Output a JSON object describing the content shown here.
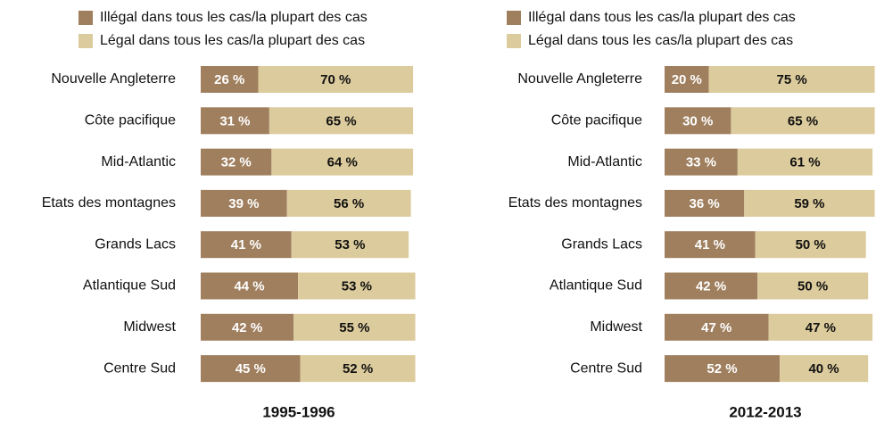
{
  "chart_data": [
    {
      "type": "bar",
      "stacked": true,
      "orientation": "horizontal",
      "title": "1995-1996",
      "categories": [
        "Nouvelle Angleterre",
        "Côte pacifique",
        "Mid-Atlantic",
        "Etats des montagnes",
        "Grands Lacs",
        "Atlantique Sud",
        "Midwest",
        "Centre Sud"
      ],
      "series": [
        {
          "name": "Illégal dans tous les cas/la plupart des cas",
          "color": "#9f7f5e",
          "values": [
            26,
            31,
            32,
            39,
            41,
            44,
            42,
            45
          ],
          "value_labels": [
            "26 %",
            "31 %",
            "32 %",
            "39 %",
            "41 %",
            "44 %",
            "42 %",
            "45 %"
          ]
        },
        {
          "name": "Légal dans tous les cas/la plupart des cas",
          "color": "#dccb9c",
          "values": [
            70,
            65,
            64,
            56,
            53,
            53,
            55,
            52
          ],
          "value_labels": [
            "70 %",
            "65 %",
            "64 %",
            "56 %",
            "53 %",
            "53 %",
            "55 %",
            "52 %"
          ]
        }
      ]
    },
    {
      "type": "bar",
      "stacked": true,
      "orientation": "horizontal",
      "title": "2012-2013",
      "categories": [
        "Nouvelle Angleterre",
        "Côte pacifique",
        "Mid-Atlantic",
        "Etats des montagnes",
        "Grands Lacs",
        "Atlantique Sud",
        "Midwest",
        "Centre Sud"
      ],
      "series": [
        {
          "name": "Illégal dans tous les cas/la plupart des cas",
          "color": "#9f7f5e",
          "values": [
            20,
            30,
            33,
            36,
            41,
            42,
            47,
            52
          ],
          "value_labels": [
            "20 %",
            "30 %",
            "33 %",
            "36 %",
            "41 %",
            "42 %",
            "47 %",
            "52 %"
          ]
        },
        {
          "name": "Légal dans tous les cas/la plupart des cas",
          "color": "#dccb9c",
          "values": [
            75,
            65,
            61,
            59,
            50,
            50,
            47,
            40
          ],
          "value_labels": [
            "75 %",
            "65 %",
            "61 %",
            "59 %",
            "50 %",
            "50 %",
            "47 %",
            "40 %"
          ]
        }
      ]
    }
  ]
}
